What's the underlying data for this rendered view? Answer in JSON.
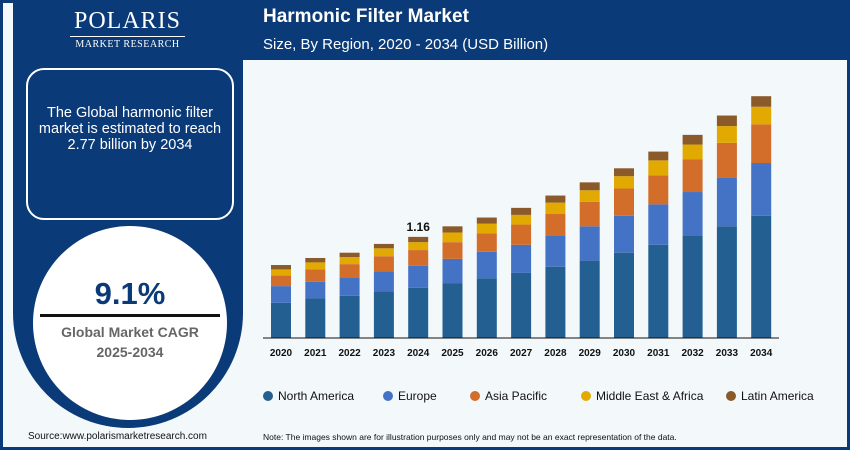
{
  "logo": {
    "name": "POLARIS",
    "tagline": "MARKET RESEARCH"
  },
  "header": {
    "title": "Harmonic Filter Market",
    "subtitle": "Size, By Region, 2020 - 2034 (USD Billion)"
  },
  "info": {
    "text": "The Global harmonic filter market is estimated to reach 2.77 billion by 2034"
  },
  "cagr": {
    "value": "9.1%",
    "label": "Global Market CAGR",
    "period": "2025-2034"
  },
  "footer": {
    "source": "Source:www.polarismarketresearch.com",
    "note": "Note: The images shown are for illustration purposes only and may not be an exact representation of the data."
  },
  "chart_data": {
    "type": "bar",
    "stacked": true,
    "title": "Harmonic Filter Market",
    "subtitle": "Size, By Region, 2020 - 2034 (USD Billion)",
    "categories": [
      "2020",
      "2021",
      "2022",
      "2023",
      "2024",
      "2025",
      "2026",
      "2027",
      "2028",
      "2029",
      "2030",
      "2031",
      "2032",
      "2033",
      "2034"
    ],
    "series": [
      {
        "name": "North America",
        "color": "#245f92",
        "values": [
          0.4,
          0.45,
          0.48,
          0.53,
          0.57,
          0.62,
          0.68,
          0.74,
          0.81,
          0.88,
          0.97,
          1.06,
          1.16,
          1.27,
          1.39
        ]
      },
      {
        "name": "Europe",
        "color": "#4472c4",
        "values": [
          0.19,
          0.19,
          0.21,
          0.23,
          0.25,
          0.28,
          0.3,
          0.32,
          0.35,
          0.39,
          0.42,
          0.46,
          0.5,
          0.55,
          0.6
        ]
      },
      {
        "name": "Asia Pacific",
        "color": "#d26d2a",
        "values": [
          0.12,
          0.14,
          0.15,
          0.17,
          0.18,
          0.19,
          0.21,
          0.23,
          0.25,
          0.28,
          0.31,
          0.33,
          0.37,
          0.4,
          0.44
        ]
      },
      {
        "name": "Middle East & Africa",
        "color": "#e2aa00",
        "values": [
          0.07,
          0.08,
          0.08,
          0.09,
          0.09,
          0.11,
          0.11,
          0.11,
          0.13,
          0.13,
          0.14,
          0.17,
          0.17,
          0.19,
          0.2
        ]
      },
      {
        "name": "Latin America",
        "color": "#8b5a2b",
        "values": [
          0.05,
          0.05,
          0.05,
          0.05,
          0.06,
          0.07,
          0.07,
          0.08,
          0.08,
          0.09,
          0.09,
          0.1,
          0.11,
          0.12,
          0.12
        ]
      }
    ],
    "annotations": [
      {
        "category": "2024",
        "text": "1.16"
      }
    ],
    "ylim": [
      0,
      2.9
    ],
    "grid": false,
    "legend": "bottom"
  }
}
